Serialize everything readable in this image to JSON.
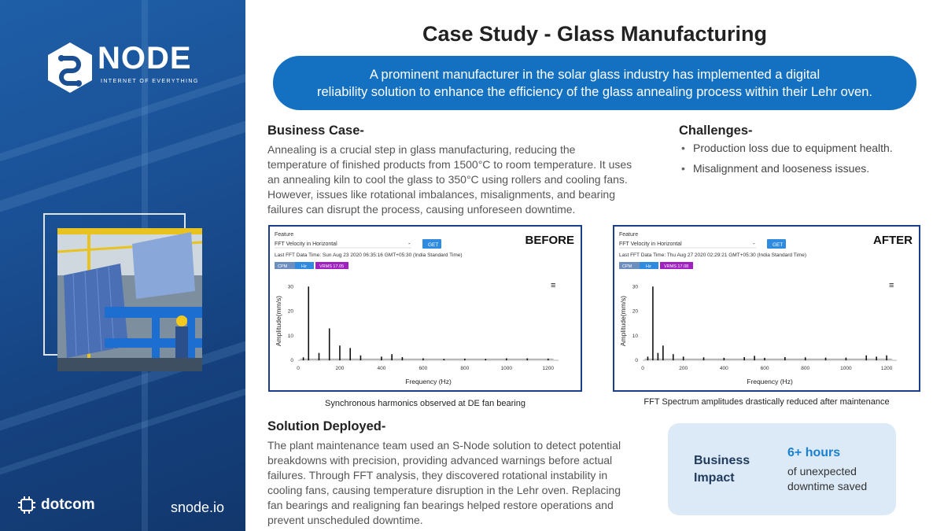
{
  "brand": {
    "name": "NODE",
    "tagline": "INTERNET OF EVERYTHING",
    "partner": "dotcom",
    "site": "snode.io"
  },
  "title": "Case Study - Glass Manufacturing",
  "banner": {
    "line1": "A prominent manufacturer in the solar glass industry has implemented a digital",
    "line2": "reliability solution to enhance the efficiency of the glass annealing process within their Lehr oven."
  },
  "business_case": {
    "heading": "Business Case-",
    "lines": [
      "Annealing is a crucial step in glass manufacturing, reducing the",
      "temperature of finished products from 1500°C to room temperature. It uses",
      "an annealing kiln to cool the glass to 350°C using rollers and cooling fans.",
      "However, issues like rotational imbalances, misalignments, and bearing",
      "failures can disrupt the process, causing unforeseen downtime."
    ]
  },
  "challenges": {
    "heading": "Challenges-",
    "items": [
      "Production loss due to equipment health.",
      "Misalignment and looseness issues."
    ]
  },
  "solution": {
    "heading": "Solution Deployed-",
    "lines": [
      "The plant maintenance team used an S-Node solution to detect potential",
      "breakdowns with precision, providing advanced warnings before actual",
      "failures. Through FFT analysis, they discovered rotational instability in",
      "cooling fans, causing temperature disruption in the Lehr oven. Replacing",
      "fan bearings and realigning fan bearings helped restore operations and",
      "prevent unscheduled downtime."
    ]
  },
  "impact": {
    "label_line1": "Business",
    "label_line2": "Impact",
    "value": "6+ hours",
    "desc_line1": "of unexpected",
    "desc_line2": "downtime saved"
  },
  "chart_common": {
    "feature_label": "Feature",
    "select_value": "FFT Velocity in Horizontal",
    "get_label": "GET",
    "cpm": "CPM",
    "hz": "Hz",
    "xlabel": "Frequency (Hz)",
    "ylabel": "Amplitude(mm/s)",
    "menu_icon": "≡"
  },
  "chart_data": [
    {
      "type": "bar",
      "title": "BEFORE",
      "date_text": "Last FFT Data Time: Sun Aug 23 2020 06:35:16 GMT+05:30 (India Standard Time)",
      "vrms": "VRMS 17.05",
      "caption": "Synchronous harmonics observed at DE fan bearing",
      "xlabel": "Frequency (Hz)",
      "ylabel": "Amplitude(mm/s)",
      "xlim": [
        0,
        1250
      ],
      "ylim": [
        0,
        32
      ],
      "xticks": [
        0,
        200,
        400,
        600,
        800,
        1000,
        1200
      ],
      "yticks": [
        0,
        10,
        20,
        30
      ],
      "x": [
        25,
        50,
        100,
        150,
        200,
        250,
        300,
        400,
        450,
        500,
        600,
        700,
        800,
        900,
        1000,
        1100,
        1200
      ],
      "values": [
        1.2,
        30,
        3,
        13,
        6,
        5,
        2,
        1.5,
        2.5,
        1.3,
        0.8,
        0.6,
        0.7,
        0.6,
        0.8,
        0.8,
        0.7
      ]
    },
    {
      "type": "bar",
      "title": "AFTER",
      "date_text": "Last FFT Data Time: Thu Aug 27 2020 02:29:21 GMT+05:30 (India Standard Time)",
      "vrms": "VRMS 17.08",
      "caption": "FFT Spectrum amplitudes drastically reduced after maintenance",
      "xlabel": "Frequency (Hz)",
      "ylabel": "Amplitude(mm/s)",
      "xlim": [
        0,
        1250
      ],
      "ylim": [
        0,
        32
      ],
      "xticks": [
        0,
        200,
        400,
        600,
        800,
        1000,
        1200
      ],
      "yticks": [
        0,
        10,
        20,
        30
      ],
      "x": [
        25,
        50,
        75,
        100,
        150,
        200,
        300,
        400,
        500,
        550,
        600,
        700,
        800,
        900,
        1000,
        1100,
        1150,
        1200
      ],
      "values": [
        1.5,
        30,
        3,
        6,
        2.5,
        1.5,
        1.2,
        1,
        1.3,
        1.8,
        1,
        1.3,
        1.2,
        1.1,
        1.1,
        2,
        1.5,
        2
      ]
    }
  ]
}
